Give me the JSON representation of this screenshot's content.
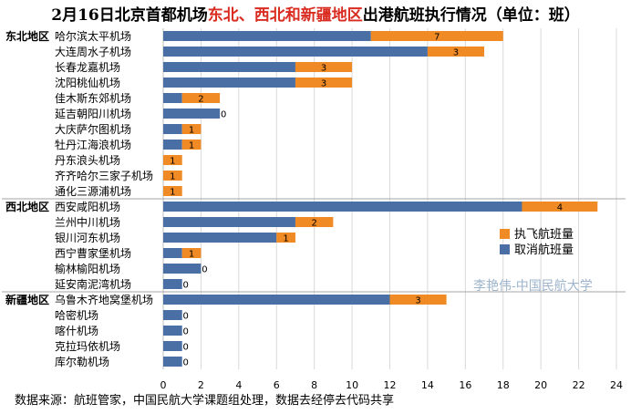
{
  "title": {
    "part1": "2月16日北京首都机场",
    "highlight": "东北、西北和新疆地区",
    "part2": "出港航班执行情况（单位：班）"
  },
  "watermark": "李艳伟-中国民航大学",
  "source": "数据来源：航班管家，中国民航大学课题组处理，数据去经停去代码共享",
  "chart_data": {
    "type": "bar",
    "orientation": "horizontal",
    "stacked": true,
    "xlim": [
      0,
      24
    ],
    "xticks": [
      0,
      2,
      4,
      6,
      8,
      10,
      12,
      14,
      16,
      18,
      20,
      22,
      24
    ],
    "grid": true,
    "legend_position": "right",
    "groups": [
      {
        "name": "东北地区",
        "categories": [
          "哈尔滨太平机场",
          "大连周水子机场",
          "长春龙嘉机场",
          "沈阳桃仙机场",
          "佳木斯东郊机场",
          "延吉朝阳川机场",
          "大庆萨尔图机场",
          "牡丹江海浪机场",
          "丹东浪头机场",
          "齐齐哈尔三家子机场",
          "通化三源浦机场"
        ]
      },
      {
        "name": "西北地区",
        "categories": [
          "西安咸阳机场",
          "兰州中川机场",
          "银川河东机场",
          "西宁曹家堡机场",
          "榆林榆阳机场",
          "延安南泥湾机场"
        ]
      },
      {
        "name": "新疆地区",
        "categories": [
          "乌鲁木齐地窝堡机场",
          "哈密机场",
          "喀什机场",
          "克拉玛依机场",
          "库尔勒机场"
        ]
      }
    ],
    "categories": [
      "哈尔滨太平机场",
      "大连周水子机场",
      "长春龙嘉机场",
      "沈阳桃仙机场",
      "佳木斯东郊机场",
      "延吉朝阳川机场",
      "大庆萨尔图机场",
      "牡丹江海浪机场",
      "丹东浪头机场",
      "齐齐哈尔三家子机场",
      "通化三源浦机场",
      "西安咸阳机场",
      "兰州中川机场",
      "银川河东机场",
      "西宁曹家堡机场",
      "榆林榆阳机场",
      "延安南泥湾机场",
      "乌鲁木齐地窝堡机场",
      "哈密机场",
      "喀什机场",
      "克拉玛依机场",
      "库尔勒机场"
    ],
    "series": [
      {
        "name": "取消航班量",
        "color": "#4a6fa5",
        "values": [
          11,
          14,
          7,
          7,
          1,
          3,
          1,
          1,
          0,
          0,
          0,
          19,
          7,
          6,
          1,
          2,
          1,
          12,
          1,
          1,
          1,
          1
        ]
      },
      {
        "name": "执飞航班量",
        "color": "#f08a24",
        "values": [
          7,
          3,
          3,
          3,
          2,
          0,
          1,
          1,
          1,
          1,
          1,
          4,
          2,
          1,
          1,
          0,
          0,
          3,
          0,
          0,
          0,
          0
        ]
      }
    ],
    "data_labels": [
      "7",
      "3",
      "3",
      "3",
      "2",
      "0",
      "1",
      "1",
      "1",
      "1",
      "1",
      "4",
      "2",
      "1",
      "1",
      "0",
      "0",
      "3",
      "0",
      "0",
      "0",
      "0"
    ]
  }
}
